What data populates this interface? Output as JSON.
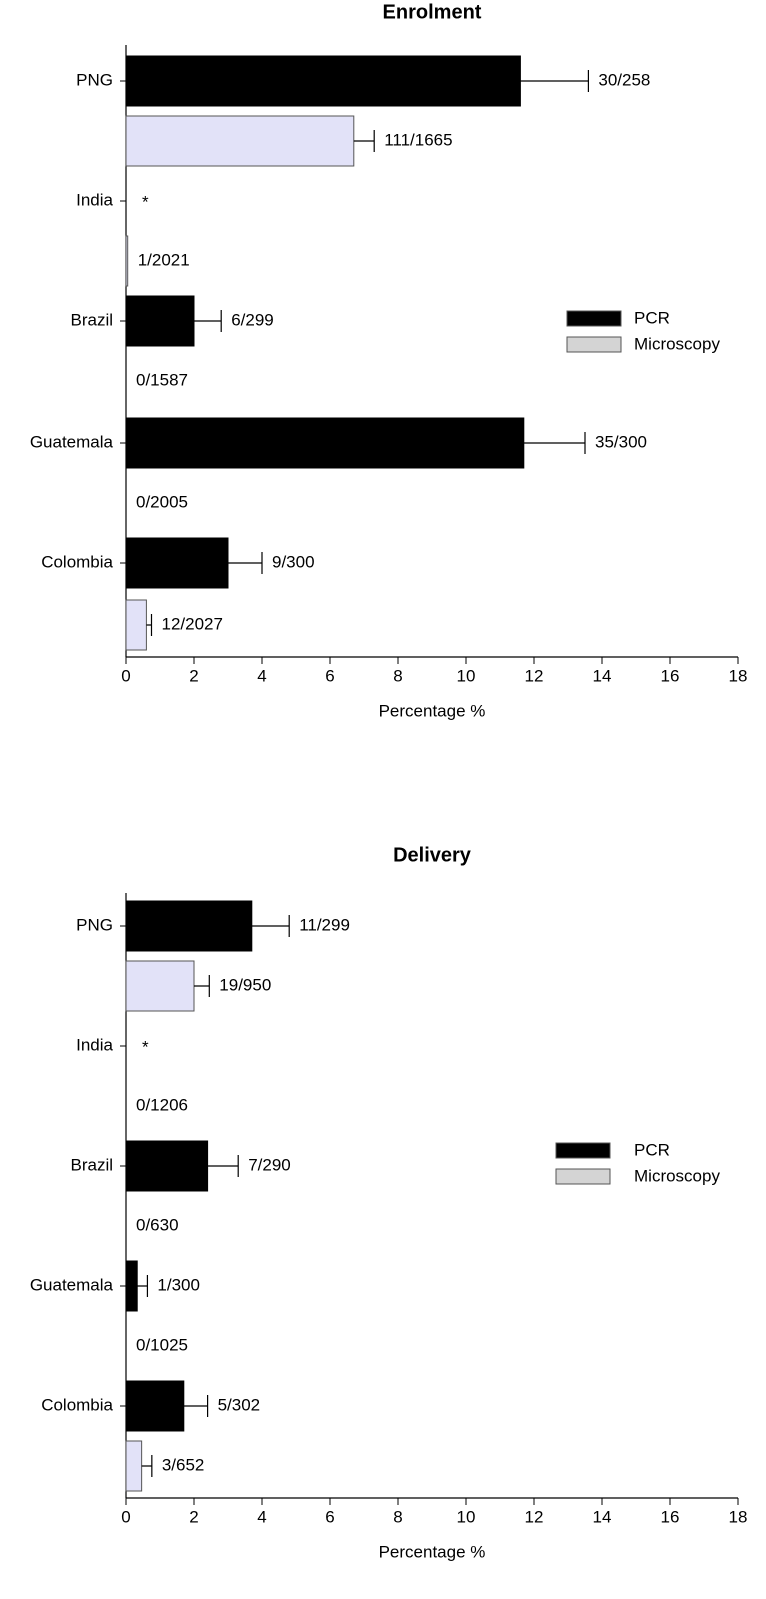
{
  "chart_data": [
    {
      "type": "bar",
      "orientation": "horizontal",
      "title": "Enrolment",
      "xlabel": "Percentage %",
      "categories": [
        "PNG",
        "India",
        "Brazil",
        "Guatemala",
        "Colombia"
      ],
      "series": [
        {
          "name": "PCR",
          "color": "#000000",
          "values": [
            11.6,
            null,
            2.0,
            11.7,
            3.0
          ],
          "errors": [
            2.0,
            null,
            0.8,
            1.8,
            1.0
          ],
          "value_labels": [
            "30/258",
            "*",
            "6/299",
            "35/300",
            "9/300"
          ]
        },
        {
          "name": "Microscopy",
          "color": "#e2e2f8",
          "values": [
            6.7,
            0.05,
            0,
            0,
            0.6
          ],
          "errors": [
            0.6,
            null,
            null,
            null,
            0.15
          ],
          "value_labels": [
            "111/1665",
            "1/2021",
            "0/1587",
            "0/2005",
            "12/2027"
          ]
        }
      ],
      "xlim": [
        0,
        18
      ],
      "xticks": [
        0,
        2,
        4,
        6,
        8,
        10,
        12,
        14,
        16,
        18
      ],
      "legend": "right"
    },
    {
      "type": "bar",
      "orientation": "horizontal",
      "title": "Delivery",
      "xlabel": "Percentage %",
      "categories": [
        "PNG",
        "India",
        "Brazil",
        "Guatemala",
        "Colombia"
      ],
      "series": [
        {
          "name": "PCR",
          "color": "#000000",
          "values": [
            3.7,
            null,
            2.4,
            0.33,
            1.7
          ],
          "errors": [
            1.1,
            null,
            0.9,
            0.3,
            0.7
          ],
          "value_labels": [
            "11/299",
            "*",
            "7/290",
            "1/300",
            "5/302"
          ]
        },
        {
          "name": "Microscopy",
          "color": "#e2e2f8",
          "values": [
            2.0,
            0,
            0,
            0,
            0.46
          ],
          "errors": [
            0.45,
            null,
            null,
            null,
            0.3
          ],
          "value_labels": [
            "19/950",
            "0/1206",
            "0/630",
            "0/1025",
            "3/652"
          ]
        }
      ],
      "xlim": [
        0,
        18
      ],
      "xticks": [
        0,
        2,
        4,
        6,
        8,
        10,
        12,
        14,
        16,
        18
      ],
      "legend": "right"
    }
  ]
}
